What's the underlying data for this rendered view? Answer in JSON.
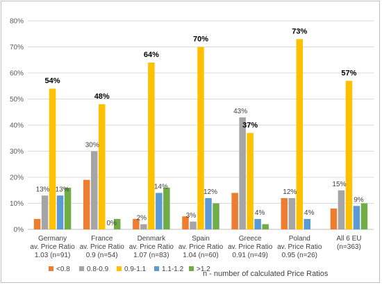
{
  "chart_data": {
    "type": "bar",
    "categories": [
      [
        "Germany",
        "av. Price Ratio",
        "1.03 (n=91)"
      ],
      [
        "France",
        "av. Price Ratio",
        "0.9 (n=54)"
      ],
      [
        "Denmark",
        "av. Price Ratio",
        "1.07 (n=83)"
      ],
      [
        "Spain",
        "av. Price Ratio",
        "1.04 (n=60)"
      ],
      [
        "Greece",
        "av. Price Ratio",
        "0.91 (n=49)"
      ],
      [
        "Poland",
        "av. Price Ratio",
        "0.95 (n=26)"
      ],
      [
        "All 6 EU",
        "(n=363)"
      ]
    ],
    "series": [
      {
        "name": "<0.8",
        "color": "#ed7d31",
        "values": [
          4,
          19,
          4,
          5,
          14,
          12,
          8
        ]
      },
      {
        "name": "0.8-0.9",
        "color": "#a5a5a5",
        "values": [
          13,
          30,
          2,
          3,
          43,
          12,
          15
        ]
      },
      {
        "name": "0.9-1.1",
        "color": "#ffc000",
        "values": [
          54,
          48,
          64,
          70,
          37,
          73,
          57
        ]
      },
      {
        "name": "1.1-1.2",
        "color": "#5b9bd5",
        "values": [
          13,
          0,
          14,
          12,
          4,
          4,
          9
        ]
      },
      {
        "name": ">1.2",
        "color": "#70ad47",
        "values": [
          16,
          4,
          16,
          10,
          2,
          0,
          10
        ]
      }
    ],
    "data_labels": [
      {
        "category": 0,
        "series": 1,
        "text": "13%",
        "style": "small"
      },
      {
        "category": 0,
        "series": 2,
        "text": "54%",
        "style": "big"
      },
      {
        "category": 0,
        "series": 3,
        "text": "13%",
        "style": "small"
      },
      {
        "category": 1,
        "series": 1,
        "text": "30%",
        "style": "small"
      },
      {
        "category": 1,
        "series": 2,
        "text": "48%",
        "style": "big"
      },
      {
        "category": 1,
        "series": 3,
        "text": "0%",
        "style": "small"
      },
      {
        "category": 2,
        "series": 1,
        "text": "2%",
        "style": "small"
      },
      {
        "category": 2,
        "series": 2,
        "text": "64%",
        "style": "big"
      },
      {
        "category": 2,
        "series": 3,
        "text": "14%",
        "style": "small"
      },
      {
        "category": 3,
        "series": 1,
        "text": "3%",
        "style": "small"
      },
      {
        "category": 3,
        "series": 2,
        "text": "70%",
        "style": "big"
      },
      {
        "category": 3,
        "series": 3,
        "text": "12%",
        "style": "small"
      },
      {
        "category": 4,
        "series": 1,
        "text": "43%",
        "style": "small"
      },
      {
        "category": 4,
        "series": 2,
        "text": "37%",
        "style": "big"
      },
      {
        "category": 4,
        "series": 3,
        "text": "4%",
        "style": "small"
      },
      {
        "category": 5,
        "series": 1,
        "text": "12%",
        "style": "small"
      },
      {
        "category": 5,
        "series": 2,
        "text": "73%",
        "style": "big"
      },
      {
        "category": 5,
        "series": 3,
        "text": "4%",
        "style": "small"
      },
      {
        "category": 6,
        "series": 1,
        "text": "15%",
        "style": "small"
      },
      {
        "category": 6,
        "series": 2,
        "text": "57%",
        "style": "big"
      },
      {
        "category": 6,
        "series": 3,
        "text": "9%",
        "style": "small"
      }
    ],
    "ylim": [
      0,
      80
    ],
    "yticks": [
      0,
      10,
      20,
      30,
      40,
      50,
      60,
      70,
      80
    ],
    "ytick_suffix": "%",
    "grid": true,
    "legend_position": "bottom",
    "note": "n - number of calculated Price Ratios",
    "title": "",
    "xlabel": "",
    "ylabel": ""
  }
}
